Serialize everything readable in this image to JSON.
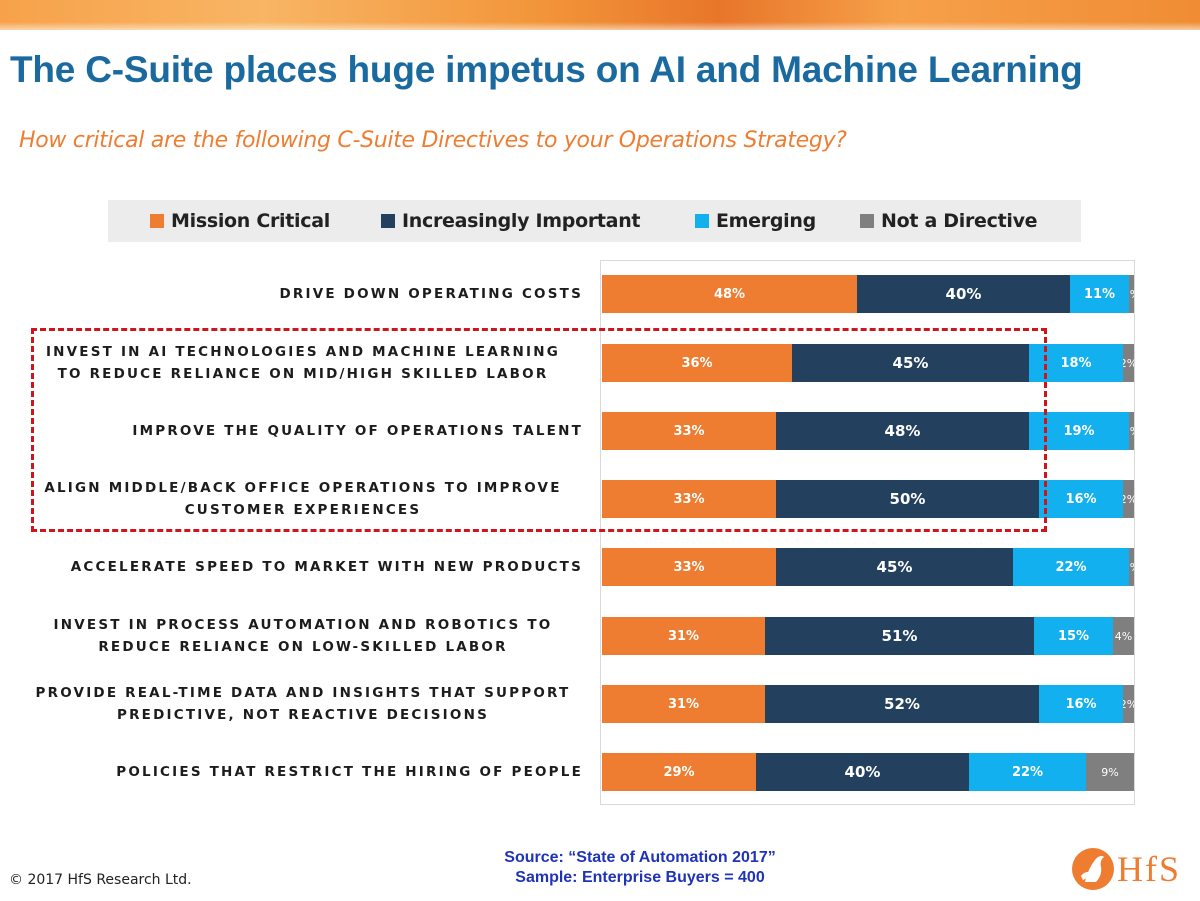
{
  "title": "The C-Suite places huge impetus on AI and Machine Learning",
  "subtitle": "How critical are the following C-Suite Directives to your Operations Strategy?",
  "colors": {
    "mission_critical": "#ee7d31",
    "increasingly_important": "#23415e",
    "emerging": "#12b0ee",
    "not_a_directive": "#7f7f7f",
    "title": "#1a6aa0",
    "highlight": "#d0141c"
  },
  "chart_data": {
    "type": "bar",
    "orientation": "horizontal",
    "stacked": true,
    "legend_position": "top",
    "categories": [
      [
        "DRIVE DOWN OPERATING COSTS"
      ],
      [
        "INVEST IN AI TECHNOLOGIES AND MACHINE LEARNING",
        "TO REDUCE RELIANCE ON MID/HIGH SKILLED LABOR"
      ],
      [
        "IMPROVE THE QUALITY OF OPERATIONS TALENT"
      ],
      [
        "ALIGN MIDDLE/BACK OFFICE OPERATIONS TO IMPROVE",
        "CUSTOMER EXPERIENCES"
      ],
      [
        "ACCELERATE SPEED TO MARKET WITH NEW PRODUCTS"
      ],
      [
        "INVEST IN PROCESS AUTOMATION AND ROBOTICS TO",
        "REDUCE RELIANCE ON LOW-SKILLED LABOR"
      ],
      [
        "PROVIDE REAL-TIME DATA AND INSIGHTS THAT SUPPORT",
        "PREDICTIVE, NOT REACTIVE DECISIONS"
      ],
      [
        "POLICIES THAT RESTRICT THE HIRING OF PEOPLE"
      ]
    ],
    "series": [
      {
        "name": "Mission Critical",
        "key": "mc",
        "values": [
          48,
          36,
          33,
          33,
          33,
          31,
          31,
          29
        ]
      },
      {
        "name": "Increasingly Important",
        "key": "ii",
        "values": [
          40,
          45,
          48,
          50,
          45,
          51,
          52,
          40
        ]
      },
      {
        "name": "Emerging",
        "key": "em",
        "values": [
          11,
          18,
          19,
          16,
          22,
          15,
          16,
          22
        ]
      },
      {
        "name": "Not a Directive",
        "key": "nd",
        "values": [
          1,
          2,
          1,
          2,
          1,
          4,
          2,
          9
        ]
      }
    ],
    "value_suffix": "%",
    "highlighted_rows": [
      1,
      2,
      3
    ]
  },
  "source_line1": "Source: “State of Automation 2017”",
  "source_line2": "Sample: Enterprise Buyers = 400",
  "copyright": "© 2017 HfS Research Ltd.",
  "logo_text": "HfS"
}
